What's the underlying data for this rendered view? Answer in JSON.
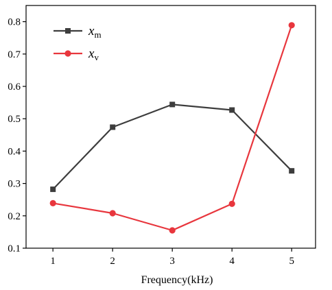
{
  "chart_data": {
    "type": "line",
    "title": "",
    "xlabel": "Frequency(kHz)",
    "ylabel": "",
    "x": [
      1,
      2,
      3,
      4,
      5
    ],
    "xlim": [
      0.55,
      5.4
    ],
    "ylim": [
      0.1,
      0.85
    ],
    "xticks": [
      1,
      2,
      3,
      4,
      5
    ],
    "yticks": [
      0.1,
      0.2,
      0.3,
      0.4,
      0.5,
      0.6,
      0.7,
      0.8
    ],
    "grid": false,
    "legend_position": "top-left",
    "series": [
      {
        "name": "x",
        "subscript": "m",
        "values": [
          0.282,
          0.474,
          0.544,
          0.527,
          0.339
        ],
        "color": "#3d3d3d",
        "marker": "square"
      },
      {
        "name": "x",
        "subscript": "v",
        "values": [
          0.239,
          0.208,
          0.155,
          0.237,
          0.789
        ],
        "color": "#e8363d",
        "marker": "circle"
      }
    ]
  }
}
